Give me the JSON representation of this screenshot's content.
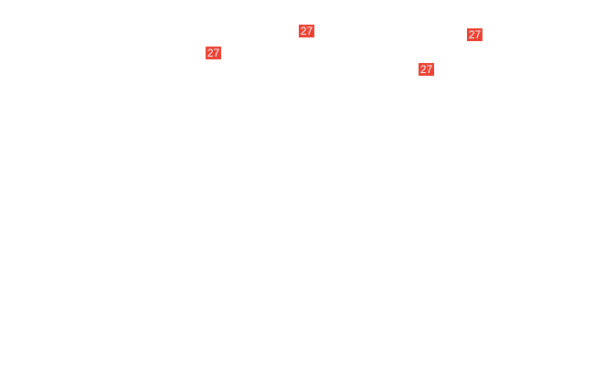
{
  "badge_color": "#ea4335",
  "labels": [
    {
      "text": "27"
    },
    {
      "text": "27"
    },
    {
      "text": "27"
    },
    {
      "text": "27"
    }
  ]
}
